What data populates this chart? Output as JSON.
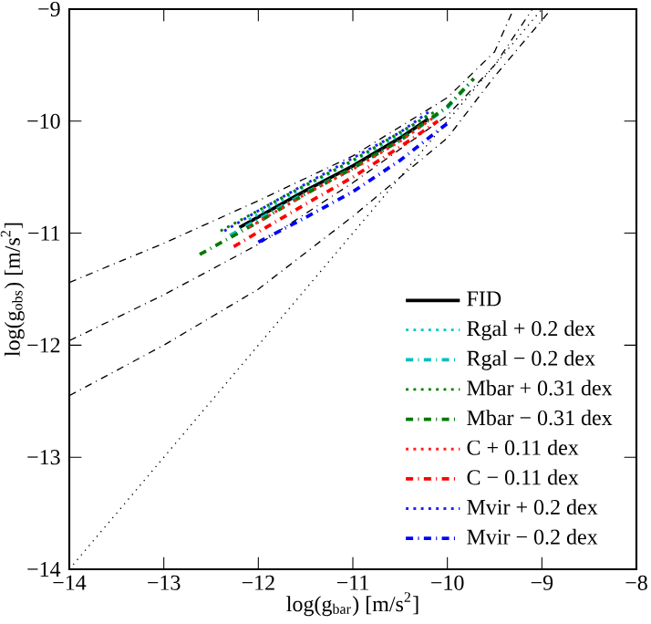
{
  "chart_data": {
    "type": "line",
    "xlabel": "log(g$_{bar}$) [m/s$^{2}$]",
    "ylabel": "log(g$_{obs}$) [m/s$^{2}$]",
    "xlim": [
      -14,
      -8
    ],
    "ylim": [
      -14,
      -9
    ],
    "xticks": [
      {
        "value": -14,
        "label": "−14"
      },
      {
        "value": -13,
        "label": "−13"
      },
      {
        "value": -12,
        "label": "−12"
      },
      {
        "value": -11,
        "label": "−11"
      },
      {
        "value": -10,
        "label": "−10"
      },
      {
        "value": -9,
        "label": "−9"
      },
      {
        "value": -8,
        "label": "−8"
      }
    ],
    "yticks": [
      {
        "value": -14,
        "label": "−14"
      },
      {
        "value": -13,
        "label": "−13"
      },
      {
        "value": -12,
        "label": "−12"
      },
      {
        "value": -11,
        "label": "−11"
      },
      {
        "value": -10,
        "label": "−10"
      },
      {
        "value": -9,
        "label": "−9"
      }
    ],
    "grid": false,
    "legend": "bottom right",
    "series": [
      {
        "color": "#000000",
        "line_style": "dashdot",
        "x": [
          -14,
          -13,
          -12,
          -11,
          -10,
          -9.5,
          -9.3
        ],
        "values": [
          -11.44,
          -11.09,
          -10.71,
          -10.31,
          -9.79,
          -9.38,
          -9.0
        ]
      },
      {
        "color": "#000000",
        "line_style": "dashdot",
        "x": [
          -14,
          -13,
          -12,
          -11,
          -10,
          -9.5,
          -9.1
        ],
        "values": [
          -11.96,
          -11.55,
          -11.1,
          -10.55,
          -9.95,
          -9.5,
          -9.0
        ]
      },
      {
        "color": "#000000",
        "line_style": "dashdot",
        "x": [
          -14,
          -13,
          -12,
          -11,
          -10,
          -9.5,
          -8.9
        ],
        "values": [
          -12.45,
          -12.0,
          -11.5,
          -10.85,
          -10.15,
          -9.6,
          -9.0
        ]
      },
      {
        "color": "#000000",
        "line_style": "dotted",
        "x": [
          -14,
          -9
        ],
        "values": [
          -14,
          -9
        ]
      },
      {
        "name": "FID",
        "color": "#000000",
        "line_style": "solid",
        "x": [
          -12.2,
          -11.5,
          -11,
          -10.5,
          -10.2
        ],
        "values": [
          -10.95,
          -10.62,
          -10.4,
          -10.15,
          -9.98
        ]
      },
      {
        "name": "Rgal + 0.2 dex",
        "color": "#00c8c8",
        "line_style": "dotted",
        "x": [
          -12.1,
          -11.5,
          -11,
          -10.5,
          -10.2
        ],
        "values": [
          -10.88,
          -10.58,
          -10.36,
          -10.12,
          -9.94
        ]
      },
      {
        "name": "Rgal − 0.2 dex",
        "color": "#00c0c0",
        "line_style": "dashdot",
        "x": [
          -12.3,
          -11.5,
          -11,
          -10.5,
          -10,
          -9.75
        ],
        "values": [
          -11.02,
          -10.64,
          -10.42,
          -10.17,
          -9.88,
          -9.65
        ]
      },
      {
        "name": "Mbar + 0.31 dex",
        "color": "#008000",
        "line_style": "dotted",
        "x": [
          -12.4,
          -11.5,
          -11,
          -10.5,
          -10.1
        ],
        "values": [
          -10.98,
          -10.57,
          -10.35,
          -10.1,
          -9.9
        ]
      },
      {
        "name": "Mbar − 0.31 dex",
        "color": "#007800",
        "line_style": "dashdot",
        "x": [
          -12.62,
          -12,
          -11.5,
          -11,
          -10.5,
          -10,
          -9.72
        ],
        "values": [
          -11.19,
          -10.9,
          -10.65,
          -10.42,
          -10.17,
          -9.87,
          -9.62
        ]
      },
      {
        "name": "C + 0.11 dex",
        "color": "#ff2020",
        "line_style": "dotted",
        "x": [
          -12.1,
          -11.5,
          -11,
          -10.5,
          -10.15
        ],
        "values": [
          -10.95,
          -10.65,
          -10.43,
          -10.18,
          -9.97
        ]
      },
      {
        "name": "C − 0.11 dex",
        "color": "#ff0000",
        "line_style": "dashdot",
        "x": [
          -12.26,
          -11.5,
          -11,
          -10.5,
          -10.1
        ],
        "values": [
          -11.12,
          -10.74,
          -10.5,
          -10.23,
          -10.0
        ]
      },
      {
        "name": "Mvir + 0.2 dex",
        "color": "#2020ff",
        "line_style": "dotted",
        "x": [
          -12.36,
          -12,
          -11.5,
          -11,
          -10.5,
          -10.2
        ],
        "values": [
          -10.98,
          -10.8,
          -10.56,
          -10.33,
          -10.1,
          -9.92
        ]
      },
      {
        "name": "Mvir − 0.2 dex",
        "color": "#0000ff",
        "line_style": "dashdot",
        "x": [
          -12,
          -11.5,
          -11,
          -10.5,
          -10
        ],
        "values": [
          -11.08,
          -10.86,
          -10.63,
          -10.35,
          -10.02
        ]
      }
    ]
  }
}
